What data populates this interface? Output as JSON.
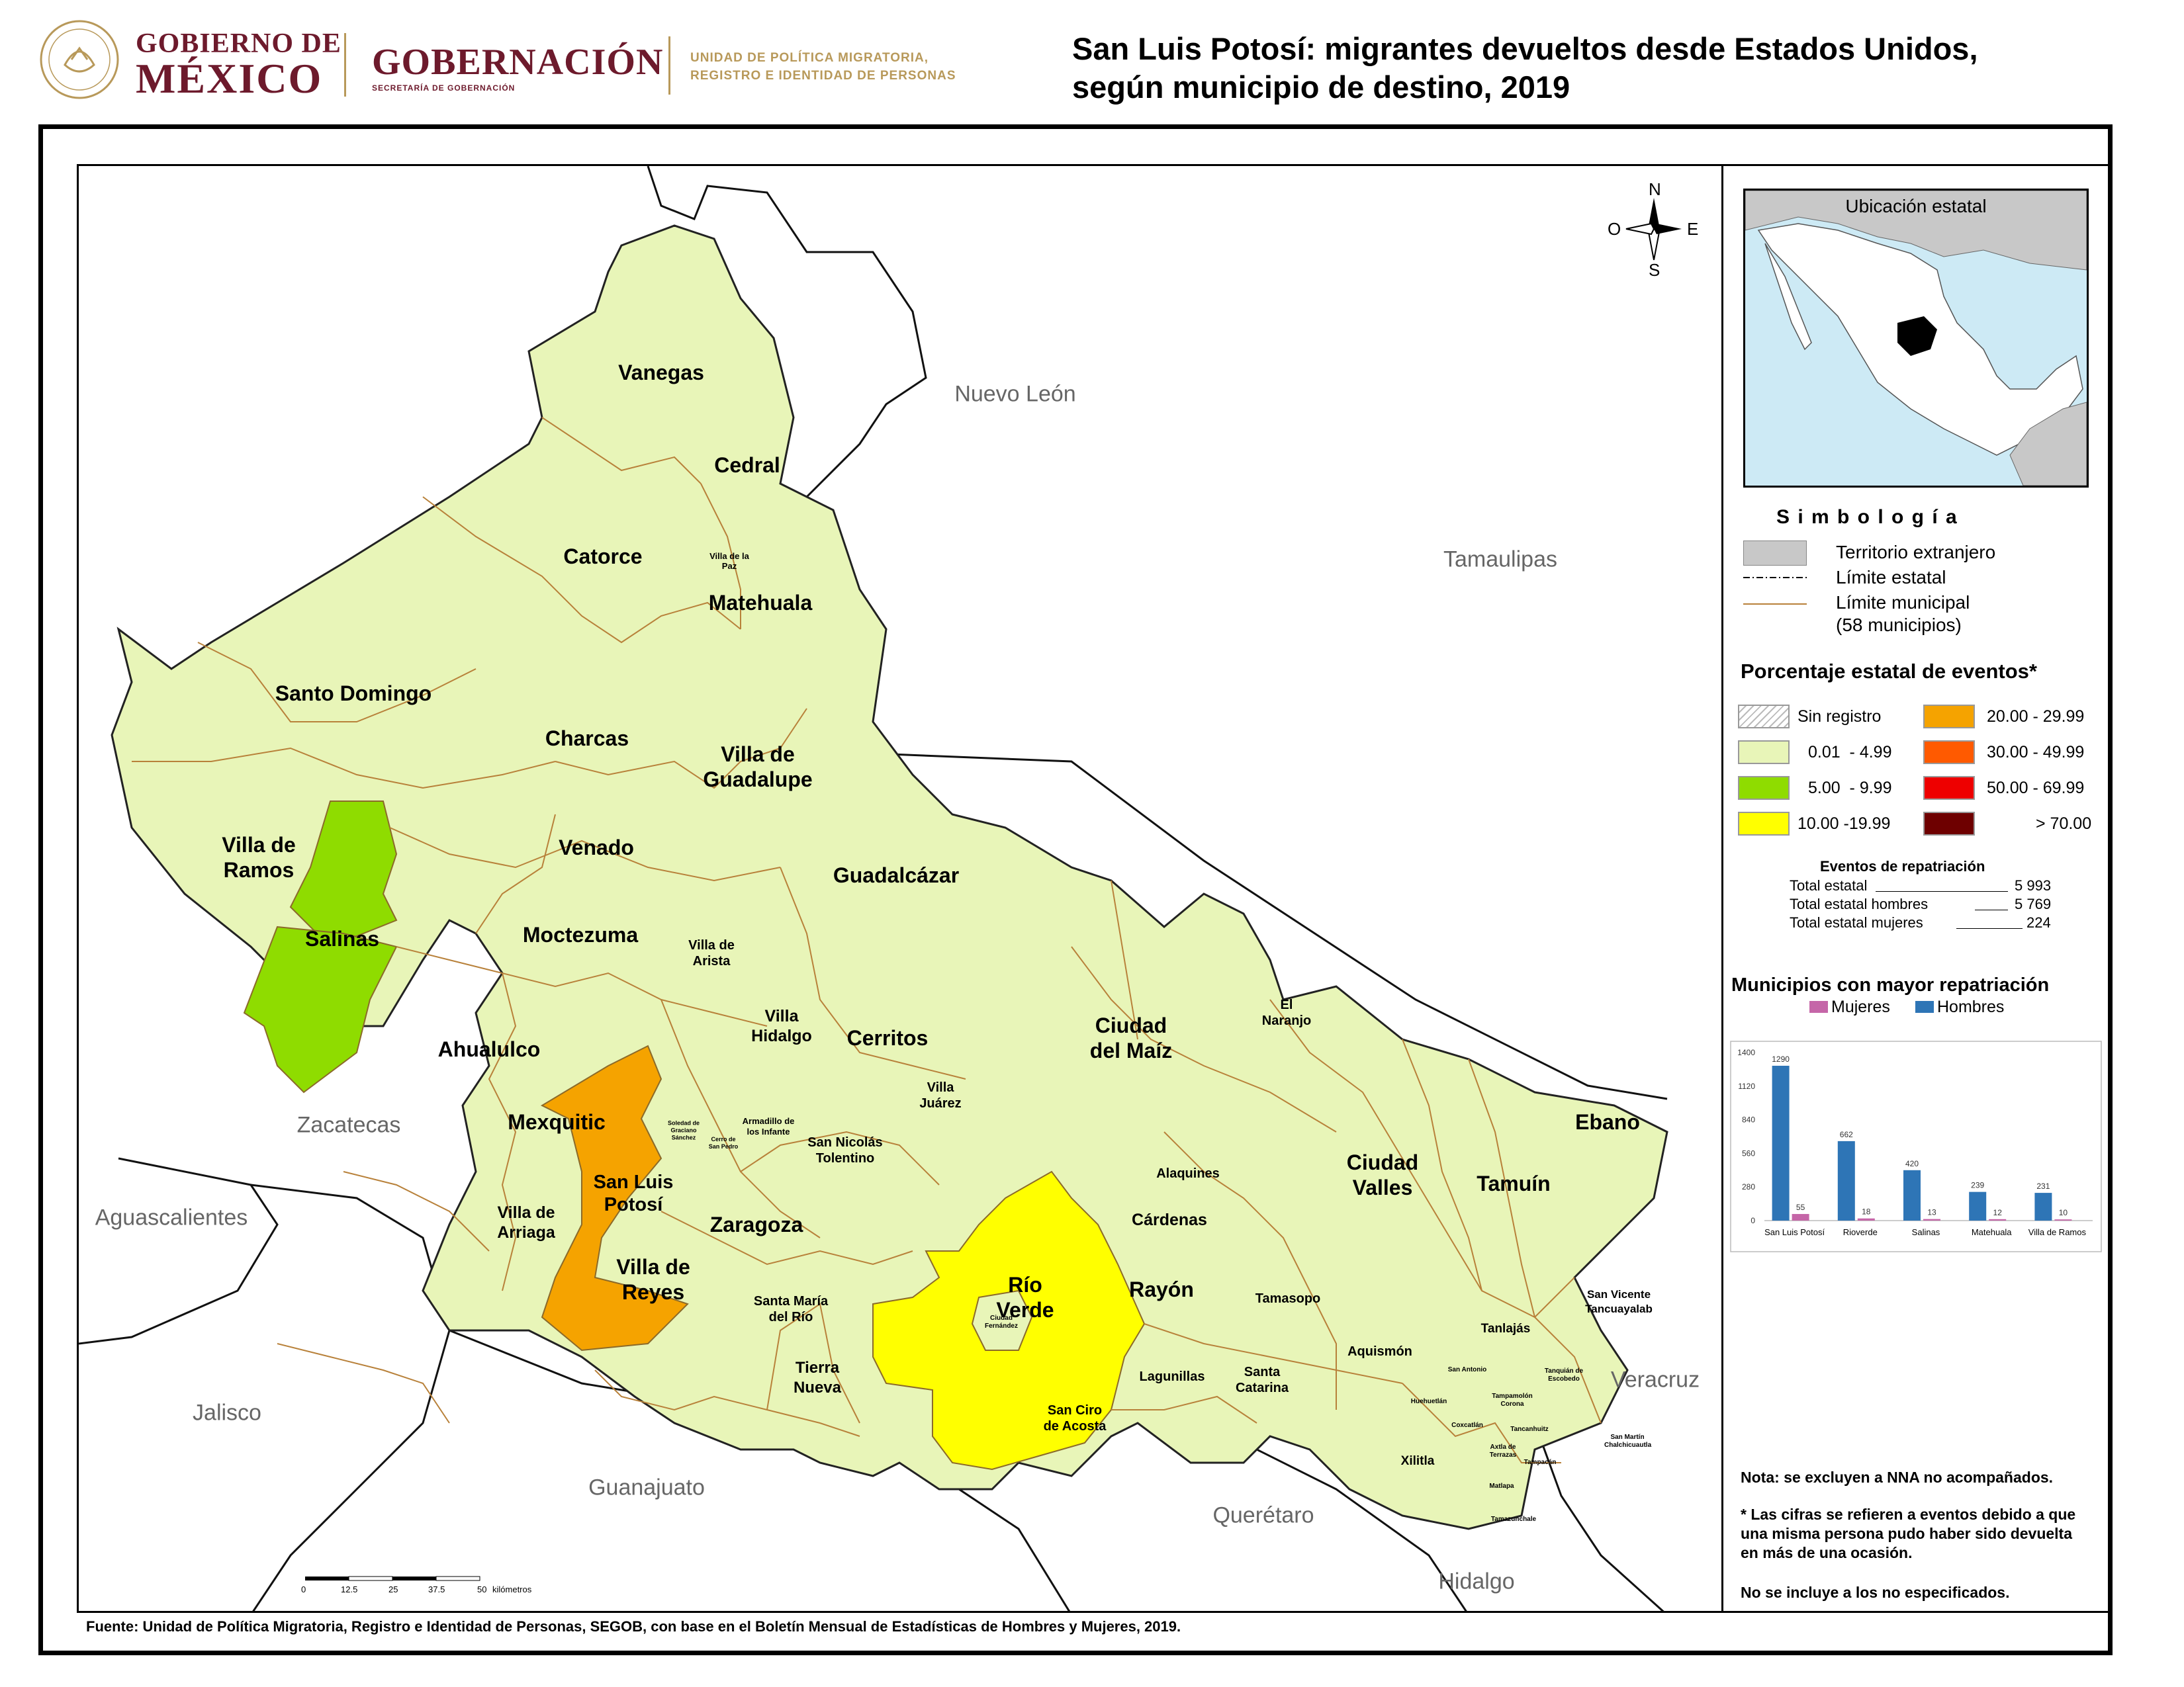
{
  "header": {
    "gob_line1": "GOBIERNO DE",
    "gob_line2": "MÉXICO",
    "gobernacion": "GOBERNACIÓN",
    "secretaria": "SECRETARÍA DE GOBERNACIÓN",
    "unidad_line1": "UNIDAD DE POLÍTICA MIGRATORIA,",
    "unidad_line2": "REGISTRO E IDENTIDAD DE PERSONAS",
    "title_line1": "San Luis Potosí: migrantes devueltos desde Estados Unidos,",
    "title_line2": "según municipio de destino, 2019"
  },
  "compass": {
    "n": "N",
    "s": "S",
    "e": "E",
    "o": "O"
  },
  "neighbors": [
    "Nuevo León",
    "Tamaulipas",
    "Zacatecas",
    "Aguascalientes",
    "Jalisco",
    "Guanajuato",
    "Querétaro",
    "Hidalgo",
    "Veracruz"
  ],
  "municipalities": {
    "large": [
      "Vanegas",
      "Cedral",
      "Catorce",
      "Matehuala",
      "Santo Domingo",
      "Charcas",
      "Villa de Guadalupe",
      "Villa de Ramos",
      "Venado",
      "Guadalcázar",
      "Salinas",
      "Moctezuma",
      "Ahualulco",
      "Cerritos",
      "Ciudad del Maíz",
      "Mexquitic",
      "San Luis Potosí",
      "Zaragoza",
      "Villa de Reyes",
      "Río Verde",
      "Rayón",
      "Ciudad Valles",
      "Tamuín",
      "Ebano"
    ],
    "medium": [
      "Villa de Arista",
      "Villa Hidalgo",
      "Villa Juárez",
      "San Nicolás Tolentino",
      "El Naranjo",
      "Alaquines",
      "Cárdenas",
      "Villa de Arriaga",
      "Santa María del Río",
      "Tierra Nueva",
      "San Ciro de Acosta",
      "Lagunillas",
      "Santa Catarina",
      "Tamasopo",
      "Aquismón",
      "Tanlajás",
      "San Vicente Tancuayalab",
      "Xilitla"
    ],
    "small": [
      "Villa de la Paz",
      "Armadillo de los Infante",
      "Soledad de Graciano Sánchez",
      "Cerro de San Pedro",
      "Ciudad Fernández",
      "San Antonio",
      "Tanquián de Escobedo",
      "Huehuetlán",
      "Tampamolón Corona",
      "Coxcatlán",
      "Axtla de Terrazas",
      "Tancanhuitz",
      "San Martín Chalchicuautla",
      "Tampacán",
      "Matlapa",
      "Tamazunchale"
    ]
  },
  "inset": {
    "title": "Ubicación estatal"
  },
  "legend": {
    "simbologia": "S i m b o l o g í a",
    "territorio": "Territorio extranjero",
    "limite_estatal": "Límite estatal",
    "limite_municipal": "Límite municipal",
    "municipios_count": "(58 municipios)",
    "porcentaje_title": "Porcentaje estatal de eventos*",
    "classes": [
      {
        "label": "Sin registro",
        "color": "hatch"
      },
      {
        "label": "0.01  - 4.99",
        "color": "#e8f5b8"
      },
      {
        "label": "5.00  - 9.99",
        "color": "#8fdc00"
      },
      {
        "label": "10.00 -19.99",
        "color": "#ffff00"
      },
      {
        "label": "20.00 - 29.99",
        "color": "#f5a300"
      },
      {
        "label": "30.00 - 49.99",
        "color": "#ff5a00"
      },
      {
        "label": "50.00 - 69.99",
        "color": "#ee0000"
      },
      {
        "label": "> 70.00",
        "color": "#6e0000"
      }
    ],
    "eventos_title": "Eventos de repatriación",
    "eventos": [
      {
        "label": "Total estatal",
        "value": "5 993"
      },
      {
        "label": "Total estatal hombres",
        "value": "5 769"
      },
      {
        "label": "Total estatal mujeres",
        "value": "224"
      }
    ]
  },
  "chart_data": {
    "type": "bar",
    "title": "Municipios con mayor repatriación",
    "categories": [
      "San Luis Potosí",
      "Rioverde",
      "Salinas",
      "Matehuala",
      "Villa de Ramos"
    ],
    "series": [
      {
        "name": "Hombres",
        "color": "#2e75b6",
        "values": [
          1290,
          662,
          420,
          239,
          231
        ]
      },
      {
        "name": "Mujeres",
        "color": "#c566a8",
        "values": [
          55,
          18,
          13,
          12,
          10
        ]
      }
    ],
    "legend_order": [
      "Mujeres",
      "Hombres"
    ],
    "ylim": [
      0,
      1400
    ],
    "yticks": [
      "0",
      "280",
      "560",
      "840",
      "1120",
      "1400"
    ]
  },
  "notes": {
    "nota1": "Nota: se excluyen a NNA no acompañados.",
    "nota2": "* Las cifras se refieren a eventos debido a que una misma persona pudo haber sido devuelta en más de una ocasión.",
    "nota3": "No se incluye a los no especificados."
  },
  "scale": {
    "ticks": [
      "0",
      "12.5",
      "25",
      "37.5",
      "50"
    ],
    "unit": "kilómetros"
  },
  "fuente": "Fuente: Unidad de Política Migratoria, Registro e Identidad de Personas, SEGOB, con base en el Boletín Mensual de Estadísticas de Hombres y Mujeres, 2019."
}
